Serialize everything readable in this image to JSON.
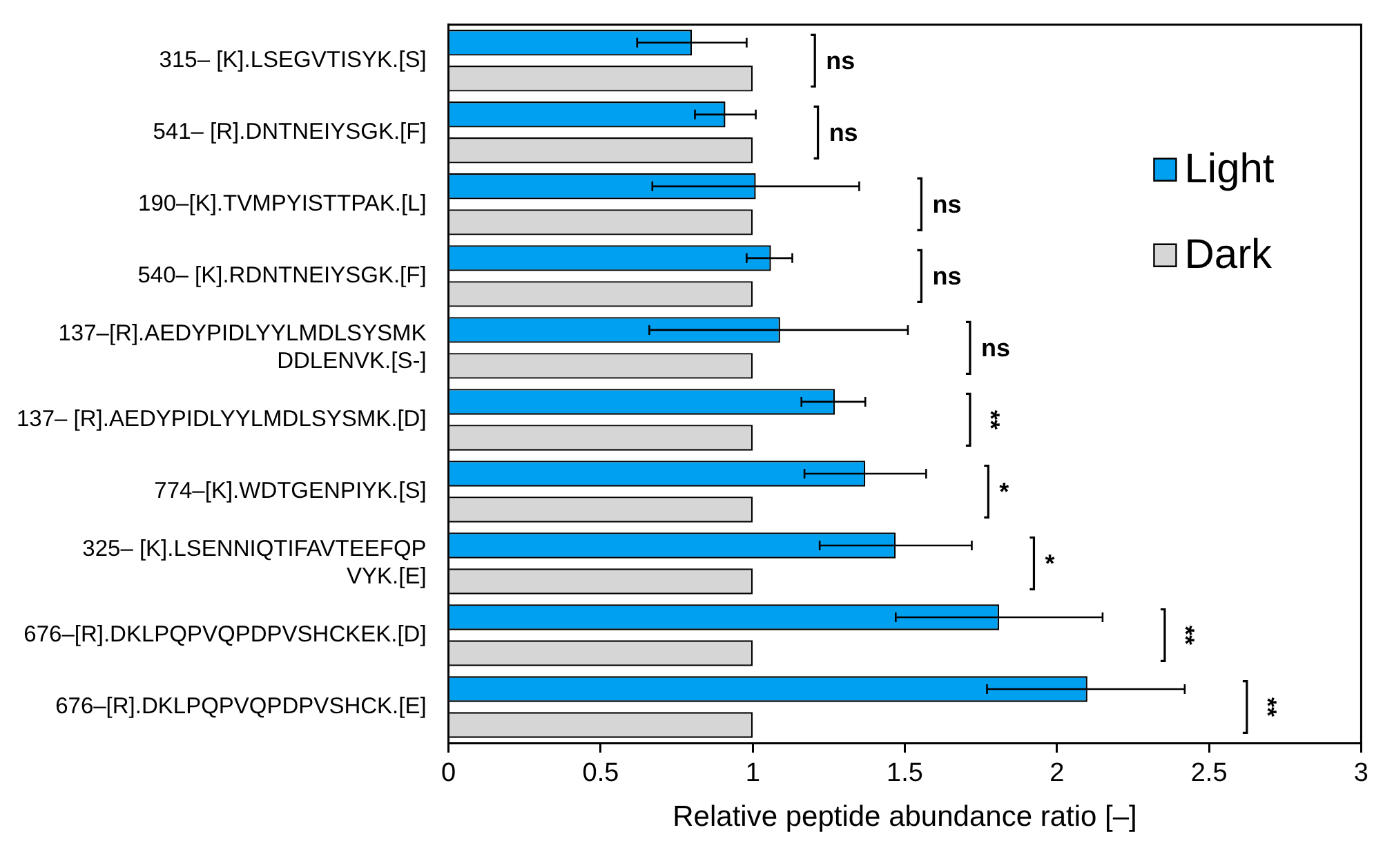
{
  "chart_data": {
    "type": "bar",
    "orientation": "horizontal",
    "xlabel": "Relative peptide abundance ratio [–]",
    "categories": [
      "315– [K].LSEGVTISYK.[S]",
      "541– [R].DNTNEIYSGK.[F]",
      "190–[K].TVMPYISTTPAK.[L]",
      "540– [K].RDNTNEIYSGK.[F]",
      "137–[R].AEDYPIDLYYLMDLSYSMK\nDDLENVK.[S-]",
      "137– [R].AEDYPIDLYYLMDLSYSMK.[D]",
      "774–[K].WDTGENPIYK.[S]",
      "325– [K].LSENNIQTIFAVTEEFQP\nVYK.[E]",
      "676–[R].DKLPQPVQPDPVSHCKEK.[D]",
      "676–[R].DKLPQPVQPDPVSHCK.[E]"
    ],
    "series": [
      {
        "name": "Light",
        "color": "#00a0f0",
        "values": [
          0.8,
          0.91,
          1.01,
          1.06,
          1.09,
          1.27,
          1.37,
          1.47,
          1.81,
          2.1
        ],
        "errors": [
          [
            0.62,
            0.98
          ],
          [
            0.81,
            1.01
          ],
          [
            0.67,
            1.35
          ],
          [
            0.98,
            1.13
          ],
          [
            0.66,
            1.51
          ],
          [
            1.16,
            1.37
          ],
          [
            1.17,
            1.57
          ],
          [
            1.22,
            1.72
          ],
          [
            1.47,
            2.15
          ],
          [
            1.77,
            2.42
          ]
        ]
      },
      {
        "name": "Dark",
        "color": "#d6d6d6",
        "values": [
          1,
          1,
          1,
          1,
          1,
          1,
          1,
          1,
          1,
          1
        ]
      }
    ],
    "xlim": [
      0,
      3
    ],
    "xticks": [
      0,
      0.5,
      1,
      1.5,
      2,
      2.5,
      3
    ],
    "grid": false,
    "legend": "right",
    "annotations": [
      "ns",
      "ns",
      "ns",
      "ns",
      "ns",
      "**",
      "*",
      "*",
      "**",
      "**"
    ]
  }
}
